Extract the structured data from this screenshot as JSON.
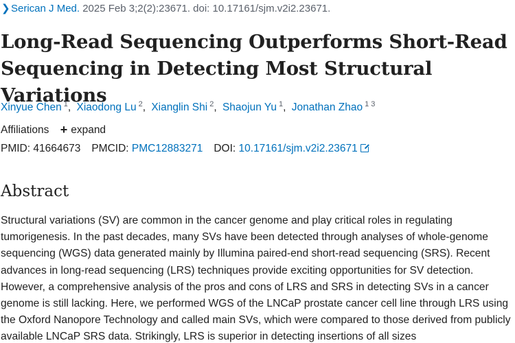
{
  "citation": {
    "chevron": "❯",
    "journal": "Serican J Med.",
    "details": " 2025 Feb 3;2(2):23671. doi: 10.17161/sjm.v2i2.23671."
  },
  "title": "Long-Read Sequencing Outperforms Short-Read Sequencing in Detecting Most Structural Variations",
  "authors": [
    {
      "name": "Xinyue Chen",
      "sup": "1"
    },
    {
      "name": "Xiaodong Lu",
      "sup": "2"
    },
    {
      "name": "Xianglin Shi",
      "sup": "2"
    },
    {
      "name": "Shaojun Yu",
      "sup": "1"
    },
    {
      "name": "Jonathan Zhao",
      "sup": "1 3"
    }
  ],
  "affiliations": {
    "label": "Affiliations",
    "expand_icon": "+",
    "expand_label": "expand"
  },
  "ids": {
    "pmid_label": "PMID:",
    "pmid": "41664673",
    "pmcid_label": "PMCID:",
    "pmcid": "PMC12883271",
    "doi_label": "DOI:",
    "doi": "10.17161/sjm.v2i2.23671",
    "doi_icon": "external-link-icon"
  },
  "abstract": {
    "heading": "Abstract",
    "text": "Structural variations (SV) are common in the cancer genome and play critical roles in regulating tumorigenesis. In the past decades, many SVs have been detected through analyses of whole-genome sequencing (WGS) data generated mainly by Illumina paired-end short-read sequencing (SRS). Recent advances in long-read sequencing (LRS) techniques provide exciting opportunities for SV detection. However, a comprehensive analysis of the pros and cons of LRS and SRS in detecting SVs in a cancer genome is still lacking. Here, we performed WGS of the LNCaP prostate cancer cell line through LRS using the Oxford Nanopore Technology and called main SVs, which were compared to those derived from publicly available LNCaP SRS data. Strikingly, LRS is superior in detecting insertions of all sizes"
  },
  "colors": {
    "link": "#0071bc",
    "text": "#212121",
    "muted": "#5b616b"
  }
}
